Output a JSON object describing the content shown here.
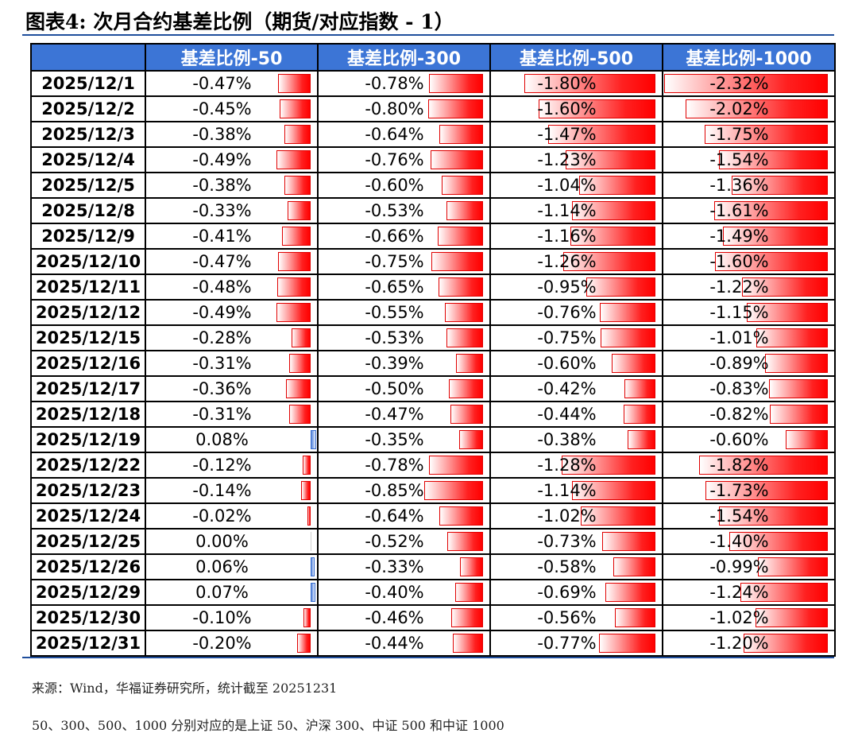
{
  "title": "图表4:  次月合约基差比例（期货/对应指数 - 1）",
  "columns": [
    "基差比例-50",
    "基差比例-300",
    "基差比例-500",
    "基差比例-1000"
  ],
  "colors": {
    "header_bg": "#3c75d6",
    "negative_bar": "#ff0000",
    "positive_bar": "#5b88dd",
    "rule": "#1f4e9c"
  },
  "rows": [
    {
      "date": "2025/12/1",
      "values": [
        "-0.47%",
        "-0.78%",
        "-1.80%",
        "-2.32%"
      ],
      "nums": [
        -0.47,
        -0.78,
        -1.8,
        -2.32
      ]
    },
    {
      "date": "2025/12/2",
      "values": [
        "-0.45%",
        "-0.80%",
        "-1.60%",
        "-2.02%"
      ],
      "nums": [
        -0.45,
        -0.8,
        -1.6,
        -2.02
      ]
    },
    {
      "date": "2025/12/3",
      "values": [
        "-0.38%",
        "-0.64%",
        "-1.47%",
        "-1.75%"
      ],
      "nums": [
        -0.38,
        -0.64,
        -1.47,
        -1.75
      ]
    },
    {
      "date": "2025/12/4",
      "values": [
        "-0.49%",
        "-0.76%",
        "-1.23%",
        "-1.54%"
      ],
      "nums": [
        -0.49,
        -0.76,
        -1.23,
        -1.54
      ]
    },
    {
      "date": "2025/12/5",
      "values": [
        "-0.38%",
        "-0.60%",
        "-1.04%",
        "-1.36%"
      ],
      "nums": [
        -0.38,
        -0.6,
        -1.04,
        -1.36
      ]
    },
    {
      "date": "2025/12/8",
      "values": [
        "-0.33%",
        "-0.53%",
        "-1.14%",
        "-1.61%"
      ],
      "nums": [
        -0.33,
        -0.53,
        -1.14,
        -1.61
      ]
    },
    {
      "date": "2025/12/9",
      "values": [
        "-0.41%",
        "-0.66%",
        "-1.16%",
        "-1.49%"
      ],
      "nums": [
        -0.41,
        -0.66,
        -1.16,
        -1.49
      ]
    },
    {
      "date": "2025/12/10",
      "values": [
        "-0.47%",
        "-0.75%",
        "-1.26%",
        "-1.60%"
      ],
      "nums": [
        -0.47,
        -0.75,
        -1.26,
        -1.6
      ]
    },
    {
      "date": "2025/12/11",
      "values": [
        "-0.48%",
        "-0.65%",
        "-0.95%",
        "-1.22%"
      ],
      "nums": [
        -0.48,
        -0.65,
        -0.95,
        -1.22
      ]
    },
    {
      "date": "2025/12/12",
      "values": [
        "-0.49%",
        "-0.55%",
        "-0.76%",
        "-1.15%"
      ],
      "nums": [
        -0.49,
        -0.55,
        -0.76,
        -1.15
      ]
    },
    {
      "date": "2025/12/15",
      "values": [
        "-0.28%",
        "-0.53%",
        "-0.75%",
        "-1.01%"
      ],
      "nums": [
        -0.28,
        -0.53,
        -0.75,
        -1.01
      ]
    },
    {
      "date": "2025/12/16",
      "values": [
        "-0.31%",
        "-0.39%",
        "-0.60%",
        "-0.89%"
      ],
      "nums": [
        -0.31,
        -0.39,
        -0.6,
        -0.89
      ]
    },
    {
      "date": "2025/12/17",
      "values": [
        "-0.36%",
        "-0.50%",
        "-0.42%",
        "-0.83%"
      ],
      "nums": [
        -0.36,
        -0.5,
        -0.42,
        -0.83
      ]
    },
    {
      "date": "2025/12/18",
      "values": [
        "-0.31%",
        "-0.47%",
        "-0.44%",
        "-0.82%"
      ],
      "nums": [
        -0.31,
        -0.47,
        -0.44,
        -0.82
      ]
    },
    {
      "date": "2025/12/19",
      "values": [
        "0.08%",
        "-0.35%",
        "-0.38%",
        "-0.60%"
      ],
      "nums": [
        0.08,
        -0.35,
        -0.38,
        -0.6
      ]
    },
    {
      "date": "2025/12/22",
      "values": [
        "-0.12%",
        "-0.78%",
        "-1.28%",
        "-1.82%"
      ],
      "nums": [
        -0.12,
        -0.78,
        -1.28,
        -1.82
      ]
    },
    {
      "date": "2025/12/23",
      "values": [
        "-0.14%",
        "-0.85%",
        "-1.14%",
        "-1.73%"
      ],
      "nums": [
        -0.14,
        -0.85,
        -1.14,
        -1.73
      ]
    },
    {
      "date": "2025/12/24",
      "values": [
        "-0.02%",
        "-0.64%",
        "-1.02%",
        "-1.54%"
      ],
      "nums": [
        -0.02,
        -0.64,
        -1.02,
        -1.54
      ]
    },
    {
      "date": "2025/12/25",
      "values": [
        "0.00%",
        "-0.52%",
        "-0.73%",
        "-1.40%"
      ],
      "nums": [
        0.0,
        -0.52,
        -0.73,
        -1.4
      ]
    },
    {
      "date": "2025/12/26",
      "values": [
        "0.06%",
        "-0.33%",
        "-0.58%",
        "-0.99%"
      ],
      "nums": [
        0.06,
        -0.33,
        -0.58,
        -0.99
      ]
    },
    {
      "date": "2025/12/29",
      "values": [
        "0.07%",
        "-0.40%",
        "-0.69%",
        "-1.24%"
      ],
      "nums": [
        0.07,
        -0.4,
        -0.69,
        -1.24
      ]
    },
    {
      "date": "2025/12/30",
      "values": [
        "-0.10%",
        "-0.46%",
        "-0.56%",
        "-1.02%"
      ],
      "nums": [
        -0.1,
        -0.46,
        -0.56,
        -1.02
      ]
    },
    {
      "date": "2025/12/31",
      "values": [
        "-0.20%",
        "-0.44%",
        "-0.77%",
        "-1.20%"
      ],
      "nums": [
        -0.2,
        -0.44,
        -0.77,
        -1.2
      ]
    }
  ],
  "source": "来源：Wind，华福证券研究所，统计截至 20251231",
  "note": "50、300、500、1000 分别对应的是上证 50、沪深 300、中证 500 和中证 1000"
}
